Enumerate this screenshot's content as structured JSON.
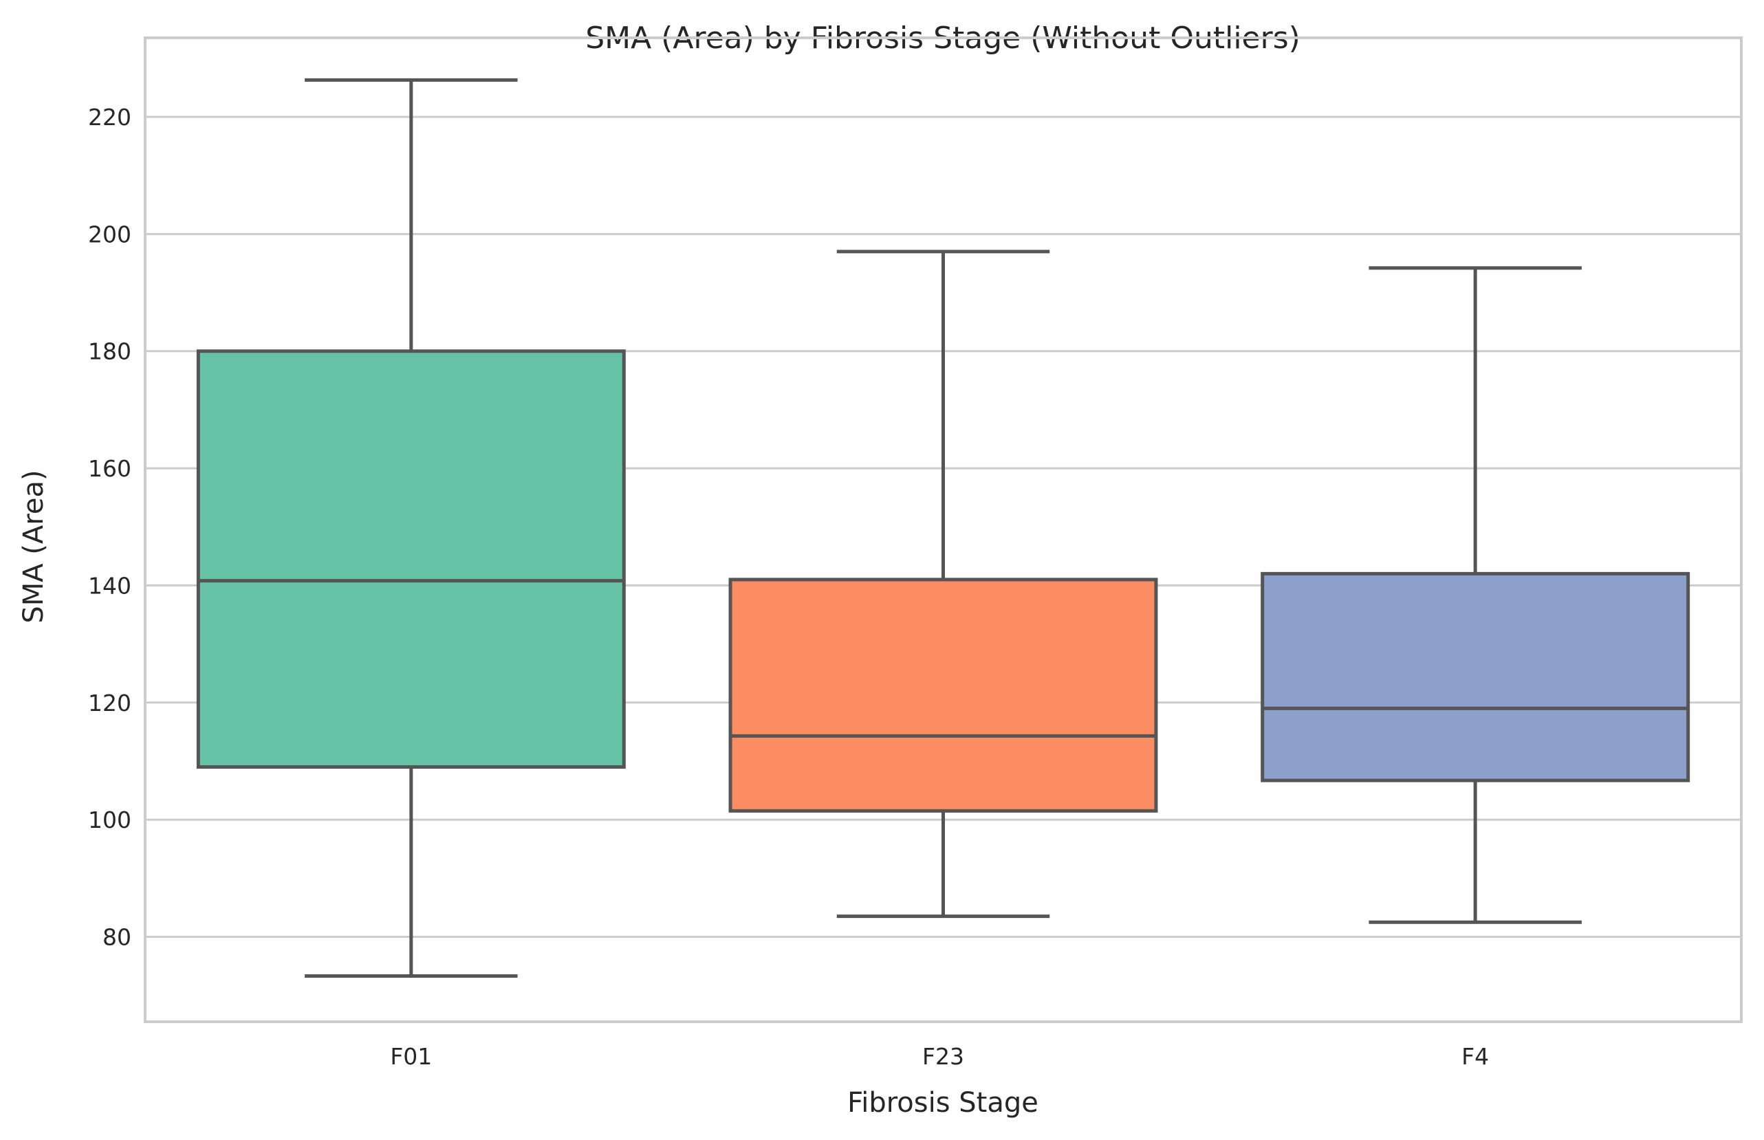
{
  "chart_data": {
    "type": "box",
    "title": "SMA (Area) by Fibrosis Stage (Without Outliers)",
    "xlabel": "Fibrosis Stage",
    "ylabel": "SMA (Area)",
    "ylim": [
      65.5,
      233.5
    ],
    "yticks": [
      80,
      100,
      120,
      140,
      160,
      180,
      200,
      220
    ],
    "grid": true,
    "categories": [
      "F01",
      "F23",
      "F4"
    ],
    "colors": [
      "#66c2a5",
      "#fc8d62",
      "#8da0cb"
    ],
    "boxes": [
      {
        "name": "F01",
        "whisker_low": 73.3,
        "q1": 109.0,
        "median": 140.8,
        "q3": 180.0,
        "whisker_high": 226.3
      },
      {
        "name": "F23",
        "whisker_low": 83.5,
        "q1": 101.5,
        "median": 114.3,
        "q3": 141.0,
        "whisker_high": 197.0
      },
      {
        "name": "F4",
        "whisker_low": 82.5,
        "q1": 106.7,
        "median": 119.0,
        "q3": 142.0,
        "whisker_high": 194.2
      }
    ]
  }
}
